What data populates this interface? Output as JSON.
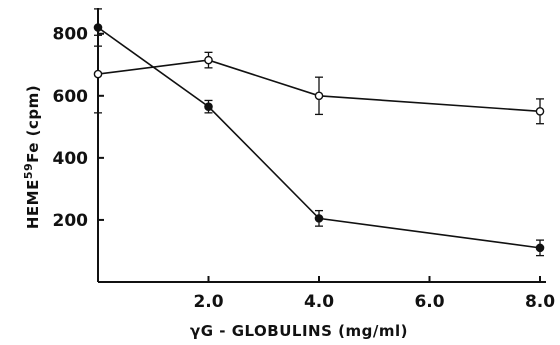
{
  "chart_data": {
    "type": "line",
    "xlabel": "γG - GLOBULINS (mg/ml)",
    "ylabel_main": "HEME",
    "ylabel_sup": "59",
    "ylabel_rest": "Fe (cpm)",
    "xlim": [
      0,
      8.0
    ],
    "ylim": [
      0,
      870
    ],
    "x_ticks": [
      {
        "value": 2.0,
        "label": "2.0"
      },
      {
        "value": 4.0,
        "label": "4.0"
      },
      {
        "value": 6.0,
        "label": "6.0"
      },
      {
        "value": 8.0,
        "label": "8.0"
      }
    ],
    "y_ticks": [
      {
        "value": 200,
        "label": "200"
      },
      {
        "value": 400,
        "label": "400"
      },
      {
        "value": 600,
        "label": "600"
      },
      {
        "value": 800,
        "label": "800"
      }
    ],
    "grid": false,
    "series": [
      {
        "marker": "open-circle",
        "points": [
          {
            "x": 0,
            "y": 670,
            "err": 125
          },
          {
            "x": 2.0,
            "y": 715,
            "err": 25
          },
          {
            "x": 4.0,
            "y": 600,
            "err": 60
          },
          {
            "x": 8.0,
            "y": 550,
            "err": 40
          }
        ]
      },
      {
        "marker": "filled-circle",
        "points": [
          {
            "x": 0,
            "y": 820,
            "err": 60
          },
          {
            "x": 2.0,
            "y": 565,
            "err": 20
          },
          {
            "x": 4.0,
            "y": 205,
            "err": 25
          },
          {
            "x": 8.0,
            "y": 110,
            "err": 25
          }
        ]
      }
    ]
  }
}
